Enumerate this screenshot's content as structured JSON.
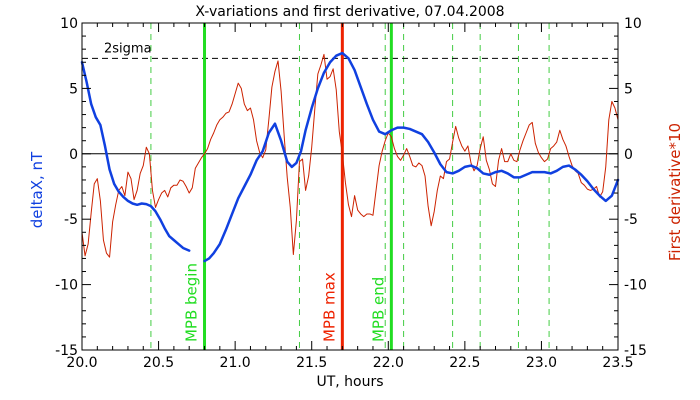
{
  "chart_data": {
    "type": "line",
    "title": "X-variations and first derivative, 07.04.2008",
    "xlabel": "UT, hours",
    "ylabel_left": "deltaX, nT",
    "ylabel_right": "First derivative*10",
    "xlim": [
      20.0,
      23.5
    ],
    "ylim": [
      -15,
      10
    ],
    "x_ticks": [
      20.0,
      20.5,
      21.0,
      21.5,
      22.0,
      22.5,
      23.0,
      23.5
    ],
    "x_tick_labels": [
      "20.0",
      "20.5",
      "21.0",
      "21.5",
      "22.0",
      "22.5",
      "23.0",
      "23.5"
    ],
    "y_ticks": [
      10,
      5,
      0,
      -5,
      -10,
      -15
    ],
    "y_tick_labels": [
      "10",
      "5",
      "0",
      "-5",
      "-10",
      "-15"
    ],
    "grid": false,
    "sigma_line": {
      "label": "2sigma",
      "y": 7.3,
      "color": "#000000"
    },
    "zero_line": {
      "y": 0
    },
    "vertical_markers": [
      {
        "x": 20.8,
        "label": "MPB begin",
        "color": "#22dd22"
      },
      {
        "x": 21.7,
        "label": "MPB max",
        "color": "#ee2200"
      },
      {
        "x": 22.02,
        "label": "MPB end",
        "color": "#22dd22"
      }
    ],
    "dashed_markers": {
      "color": "#44cc44",
      "x": [
        20.45,
        21.42,
        21.98,
        22.1,
        22.42,
        22.6,
        22.85,
        23.05
      ]
    },
    "series": [
      {
        "color": "#1040e0",
        "segments": [
          {
            "x": [
              20.0,
              20.03,
              20.06,
              20.09,
              20.12,
              20.15,
              20.18,
              20.21,
              20.24,
              20.27,
              20.3,
              20.33,
              20.36,
              20.39,
              20.42,
              20.45,
              20.48,
              20.51,
              20.54,
              20.57,
              20.6,
              20.63,
              20.66,
              20.7
            ],
            "y": [
              7.0,
              5.5,
              3.8,
              2.8,
              2.2,
              0.6,
              -1.2,
              -2.3,
              -2.9,
              -3.3,
              -3.6,
              -3.8,
              -3.9,
              -3.8,
              -3.85,
              -4.0,
              -4.4,
              -5.0,
              -5.7,
              -6.3,
              -6.6,
              -6.9,
              -7.2,
              -7.4
            ]
          },
          {
            "x": [
              20.8,
              20.83,
              20.86,
              20.9,
              20.94,
              20.98,
              21.02,
              21.06,
              21.1,
              21.14,
              21.18,
              21.22,
              21.26,
              21.3,
              21.34,
              21.37,
              21.4,
              21.43,
              21.46,
              21.5,
              21.54,
              21.58,
              21.62,
              21.66,
              21.7,
              21.74,
              21.78,
              21.82,
              21.86,
              21.9,
              21.94,
              21.98,
              22.02,
              22.06,
              22.1,
              22.14,
              22.18,
              22.22,
              22.26,
              22.3,
              22.34,
              22.38,
              22.42,
              22.46,
              22.5,
              22.54,
              22.58,
              22.62,
              22.66,
              22.7,
              22.74,
              22.78,
              22.82,
              22.86,
              22.9,
              22.94,
              22.98,
              23.02,
              23.06,
              23.1,
              23.14,
              23.18,
              23.22,
              23.26,
              23.3,
              23.34,
              23.38,
              23.42,
              23.46,
              23.5
            ],
            "y": [
              -8.2,
              -8.0,
              -7.6,
              -6.9,
              -5.8,
              -4.6,
              -3.4,
              -2.5,
              -1.6,
              -0.5,
              0.2,
              1.6,
              2.3,
              1.0,
              -0.6,
              -1.0,
              -0.7,
              0.2,
              1.8,
              3.5,
              5.0,
              6.2,
              7.0,
              7.5,
              7.7,
              7.3,
              6.4,
              5.1,
              3.8,
              2.6,
              1.7,
              1.5,
              1.8,
              2.0,
              2.0,
              1.9,
              1.7,
              1.5,
              0.9,
              0.1,
              -0.8,
              -1.4,
              -1.5,
              -1.3,
              -1.0,
              -0.9,
              -1.1,
              -1.5,
              -1.6,
              -1.4,
              -1.3,
              -1.5,
              -1.8,
              -1.8,
              -1.6,
              -1.4,
              -1.4,
              -1.4,
              -1.5,
              -1.3,
              -1.0,
              -0.9,
              -1.2,
              -1.6,
              -2.1,
              -2.7,
              -3.2,
              -3.6,
              -3.2,
              -2.0
            ]
          }
        ]
      },
      {
        "color": "#cc2200",
        "segments": [
          {
            "x": [
              20.0,
              20.02,
              20.04,
              20.06,
              20.08,
              20.1,
              20.12,
              20.14,
              20.16,
              20.18,
              20.2,
              20.22,
              20.24,
              20.26,
              20.28,
              20.3,
              20.32,
              20.34,
              20.36,
              20.38,
              20.4,
              20.42,
              20.44,
              20.46,
              20.48,
              20.5,
              20.52,
              20.54,
              20.56,
              20.58,
              20.6,
              20.62,
              20.64,
              20.66,
              20.68,
              20.7,
              20.72,
              20.74,
              20.76,
              20.78,
              20.8,
              20.82,
              20.84,
              20.86,
              20.88,
              20.9,
              20.92,
              20.94,
              20.96,
              20.98,
              21.0,
              21.02,
              21.04,
              21.06,
              21.08,
              21.1,
              21.12,
              21.14,
              21.16,
              21.18,
              21.2,
              21.22,
              21.24,
              21.26,
              21.28,
              21.3,
              21.32,
              21.34,
              21.36,
              21.38,
              21.4,
              21.42,
              21.44,
              21.46,
              21.48,
              21.5,
              21.52,
              21.54,
              21.56,
              21.58,
              21.6,
              21.62,
              21.64,
              21.66,
              21.68,
              21.7,
              21.72,
              21.74,
              21.76,
              21.78,
              21.8,
              21.82,
              21.84,
              21.86,
              21.88,
              21.9,
              21.92,
              21.94,
              21.96,
              21.98,
              22.0,
              22.02,
              22.04,
              22.06,
              22.08,
              22.1,
              22.12,
              22.14,
              22.16,
              22.18,
              22.2,
              22.22,
              22.24,
              22.26,
              22.28,
              22.3,
              22.32,
              22.34,
              22.36,
              22.38,
              22.4,
              22.42,
              22.44,
              22.46,
              22.48,
              22.5,
              22.52,
              22.54,
              22.56,
              22.58,
              22.6,
              22.62,
              22.64,
              22.66,
              22.68,
              22.7,
              22.72,
              22.74,
              22.76,
              22.78,
              22.8,
              22.82,
              22.84,
              22.86,
              22.88,
              22.9,
              22.92,
              22.94,
              22.96,
              22.98,
              23.0,
              23.02,
              23.04,
              23.06,
              23.08,
              23.1,
              23.12,
              23.14,
              23.16,
              23.18,
              23.2,
              23.22,
              23.24,
              23.26,
              23.28,
              23.3,
              23.32,
              23.34,
              23.36,
              23.38,
              23.4,
              23.42,
              23.44,
              23.46,
              23.48,
              23.5
            ],
            "y": [
              -6.0,
              -7.8,
              -6.9,
              -4.5,
              -2.3,
              -1.9,
              -3.6,
              -6.6,
              -7.6,
              -7.9,
              -5.2,
              -3.9,
              -2.8,
              -2.5,
              -3.2,
              -1.4,
              -1.9,
              -3.5,
              -2.8,
              -1.5,
              -0.9,
              0.5,
              0.0,
              -2.8,
              -4.1,
              -3.5,
              -3.0,
              -2.8,
              -3.3,
              -2.6,
              -2.4,
              -2.4,
              -2.0,
              -2.1,
              -2.5,
              -3.0,
              -2.6,
              -1.1,
              -0.7,
              -0.3,
              0.0,
              0.4,
              1.1,
              1.6,
              2.2,
              2.6,
              2.8,
              3.1,
              3.2,
              3.8,
              4.6,
              5.4,
              5.0,
              3.8,
              3.3,
              3.5,
              2.6,
              1.0,
              0.1,
              -0.3,
              0.3,
              2.6,
              5.1,
              6.3,
              7.1,
              4.8,
              1.4,
              -1.8,
              -4.1,
              -7.7,
              -5.1,
              -0.6,
              -0.4,
              -2.8,
              -1.7,
              0.5,
              3.4,
              6.1,
              6.8,
              7.6,
              5.7,
              5.9,
              6.5,
              4.9,
              1.7,
              0.0,
              -2.2,
              -3.9,
              -4.8,
              -3.2,
              -4.3,
              -4.6,
              -4.8,
              -4.6,
              -4.6,
              -4.7,
              -2.8,
              -0.9,
              0.2,
              1.0,
              1.6,
              1.3,
              0.4,
              -0.2,
              -0.5,
              -0.1,
              0.4,
              -0.2,
              -0.9,
              -1.0,
              -0.7,
              -0.9,
              -1.7,
              -4.0,
              -5.5,
              -4.4,
              -2.8,
              -1.7,
              -1.9,
              -0.6,
              -0.4,
              0.9,
              2.1,
              1.2,
              0.6,
              0.2,
              0.6,
              -0.7,
              -1.3,
              -0.9,
              0.4,
              1.3,
              -0.5,
              -1.2,
              -2.3,
              -2.5,
              -0.5,
              0.4,
              -0.6,
              -0.6,
              0.0,
              -0.5,
              -0.6,
              0.3,
              1.0,
              1.6,
              2.2,
              2.4,
              0.8,
              0.1,
              -0.3,
              -0.6,
              -0.4,
              0.4,
              0.6,
              0.9,
              1.8,
              1.1,
              0.6,
              -0.2,
              -0.9,
              -1.3,
              -1.5,
              -2.2,
              -2.4,
              -2.7,
              -2.8,
              -2.7,
              -2.5,
              -3.3,
              -2.9,
              -1.0,
              2.6,
              4.0,
              3.5,
              2.6
            ]
          }
        ]
      }
    ]
  }
}
